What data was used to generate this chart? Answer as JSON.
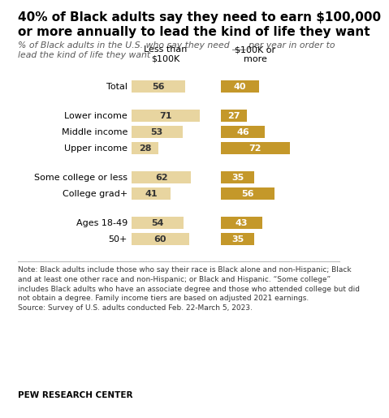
{
  "title": "40% of Black adults say they need to earn $100,000\nor more annually to lead the kind of life they want",
  "subtitle": "% of Black adults in the U.S. who say they need ___ per year in order to\nlead the kind of life they want",
  "categories": [
    "Total",
    "Lower income",
    "Middle income",
    "Upper income",
    "Some college or less",
    "College grad+",
    "Ages 18-49",
    "50+"
  ],
  "less_than_100k": [
    56,
    71,
    53,
    28,
    62,
    41,
    54,
    60
  ],
  "100k_or_more": [
    40,
    27,
    46,
    72,
    35,
    56,
    43,
    35
  ],
  "color_light": "#E8D5A0",
  "color_dark": "#C4982A",
  "col1_header": "Less than\n$100K",
  "col2_header": "$100K or\nmore",
  "note_line1": "Note: Black adults include those who say their race is Black alone and non-Hispanic; Black",
  "note_line2": "and at least one other race and non-Hispanic; or Black and Hispanic. “Some college”",
  "note_line3": "includes Black adults who have an associate degree and those who attended college but did",
  "note_line4": "not obtain a degree. Family income tiers are based on adjusted 2021 earnings.",
  "note_line5": "Source: Survey of U.S. adults conducted Feb. 22-March 5, 2023.",
  "source_label": "PEW RESEARCH CENTER",
  "background_color": "#FFFFFF",
  "text_color": "#000000",
  "subtitle_color": "#595959",
  "note_color": "#333333",
  "bar_label_light_color": "#333333",
  "bar_label_dark_color": "#FFFFFF",
  "gap_after_total": true,
  "gap_after_upper_income": true,
  "gap_after_college_grad": true
}
